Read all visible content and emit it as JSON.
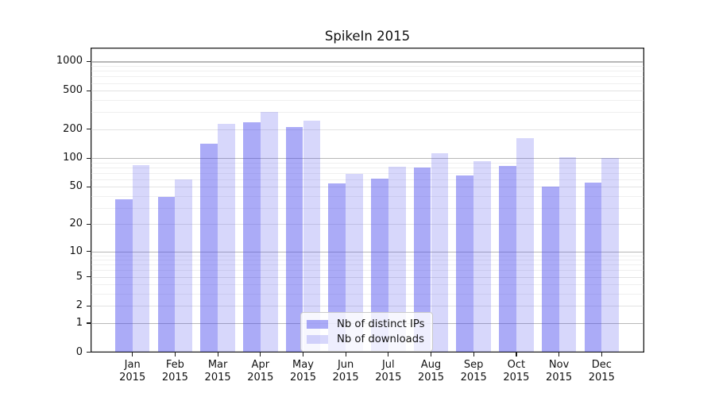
{
  "chart_data": {
    "type": "bar",
    "title": "SpikeIn 2015",
    "categories": [
      "Jan",
      "Feb",
      "Mar",
      "Apr",
      "May",
      "Jun",
      "Jul",
      "Aug",
      "Sep",
      "Oct",
      "Nov",
      "Dec"
    ],
    "year_label": "2015",
    "series": [
      {
        "name": "Nb of distinct IPs",
        "base_color": "#4444ee",
        "alpha": 0.45,
        "values": [
          37,
          39,
          142,
          237,
          210,
          54,
          61,
          79,
          66,
          82,
          50,
          55
        ]
      },
      {
        "name": "Nb of downloads",
        "base_color": "#4444ee",
        "alpha": 0.21,
        "values": [
          84,
          60,
          225,
          303,
          243,
          68,
          81,
          112,
          93,
          160,
          102,
          100
        ]
      }
    ],
    "y_ticks": [
      0,
      1,
      2,
      5,
      10,
      20,
      50,
      100,
      200,
      500,
      1000
    ],
    "yscale": "log1p (symlog-like, linear 0-1)",
    "ylim": [
      0,
      1400
    ],
    "grid": true,
    "legend_position": "inside-bottom-center",
    "colors": {
      "bar_distinct_ips_rendered": "#aaaaf8",
      "bar_downloads_rendered": "#d9d9f8",
      "grid_major": "#b8b8b8",
      "grid_mid": "#e3e3e3",
      "grid_minor": "#efefef",
      "spine": "#1a1a1a",
      "background": "#ffffff"
    }
  }
}
